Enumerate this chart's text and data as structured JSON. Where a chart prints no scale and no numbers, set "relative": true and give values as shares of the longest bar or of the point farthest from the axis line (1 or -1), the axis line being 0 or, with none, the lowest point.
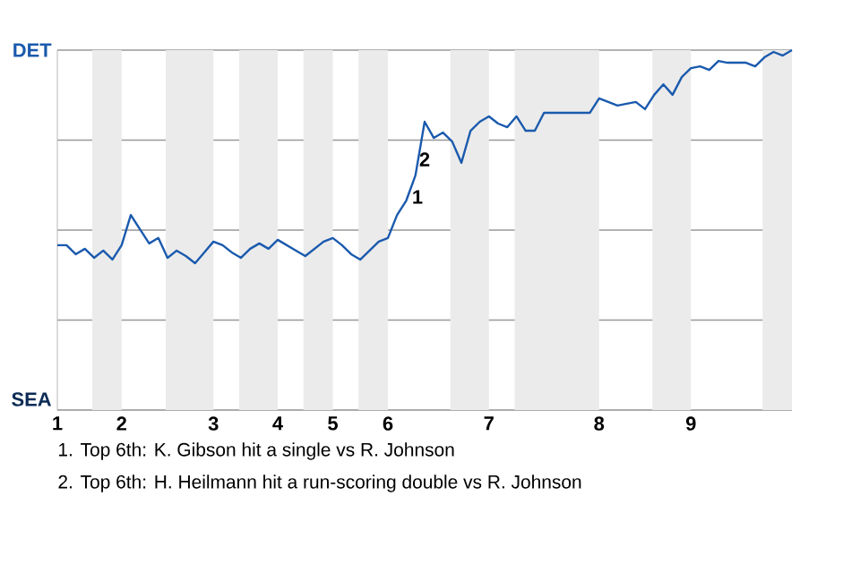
{
  "chart_data": {
    "type": "line",
    "relative": true,
    "categories": [
      "1",
      null,
      null,
      null,
      null,
      null,
      null,
      "2",
      null,
      null,
      null,
      null,
      null,
      null,
      null,
      null,
      null,
      "3",
      null,
      null,
      null,
      null,
      null,
      null,
      "4",
      null,
      null,
      null,
      null,
      null,
      "5",
      null,
      null,
      null,
      null,
      null,
      "6",
      null,
      null,
      null,
      null,
      null,
      null,
      null,
      null,
      null,
      null,
      "7",
      null,
      null,
      null,
      null,
      null,
      null,
      null,
      null,
      null,
      null,
      null,
      "8",
      null,
      null,
      null,
      null,
      null,
      null,
      null,
      null,
      null,
      "9",
      null,
      null,
      null,
      null,
      null,
      null,
      null,
      null,
      null,
      null,
      null
    ],
    "series": [
      {
        "color": "#1a5aad",
        "values": [
          0.458,
          0.458,
          0.433,
          0.448,
          0.423,
          0.443,
          0.418,
          0.458,
          0.542,
          0.502,
          0.463,
          0.478,
          0.423,
          0.443,
          0.428,
          0.408,
          0.438,
          0.468,
          0.458,
          0.438,
          0.423,
          0.448,
          0.463,
          0.448,
          0.473,
          0.458,
          0.443,
          0.428,
          0.448,
          0.468,
          0.478,
          0.458,
          0.433,
          0.418,
          0.443,
          0.468,
          0.478,
          0.542,
          0.582,
          0.652,
          0.801,
          0.756,
          0.771,
          0.746,
          0.687,
          0.776,
          0.801,
          0.816,
          0.796,
          0.786,
          0.816,
          0.776,
          0.776,
          0.826,
          0.826,
          0.826,
          0.826,
          0.826,
          0.826,
          0.866,
          0.856,
          0.846,
          0.851,
          0.856,
          0.836,
          0.876,
          0.905,
          0.876,
          0.925,
          0.95,
          0.955,
          0.945,
          0.97,
          0.965,
          0.965,
          0.965,
          0.955,
          0.98,
          0.995,
          0.985,
          1.0
        ]
      }
    ],
    "grid": "y",
    "line_style": "solid",
    "annotations": [
      "DET",
      "SEA",
      "1",
      "2",
      "1. Top 6th: K. Gibson hit a single vs R. Johnson",
      "2. Top 6th: H. Heilmann hit a run-scoring double vs R. Johnson"
    ]
  }
}
